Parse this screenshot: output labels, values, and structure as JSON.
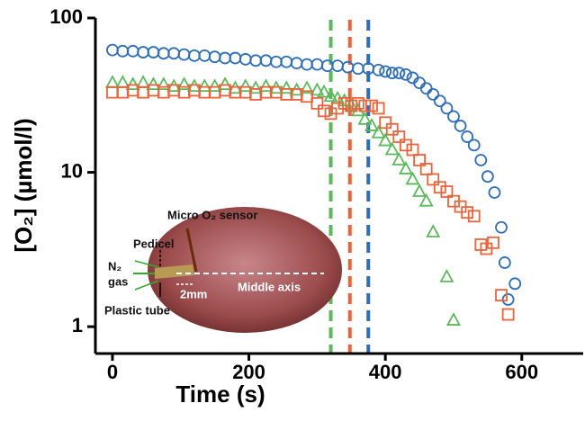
{
  "chart_data": {
    "type": "scatter",
    "x_label": "Time (s)",
    "y_label": "[O₂] (µmol/l)",
    "xlim": [
      -25,
      690
    ],
    "ylim": [
      0.67,
      100
    ],
    "log_y": true,
    "xticks": [
      0,
      200,
      400,
      600
    ],
    "yticks": [
      1,
      10,
      100
    ],
    "vlines": [
      {
        "x": 320,
        "color": "#5cb85c"
      },
      {
        "x": 348,
        "color": "#e8643c"
      },
      {
        "x": 375,
        "color": "#2f6db5"
      }
    ],
    "series": [
      {
        "marker": "circle",
        "color": "#2f6db5",
        "x": [
          0,
          15,
          30,
          45,
          60,
          75,
          90,
          105,
          120,
          135,
          150,
          165,
          180,
          195,
          210,
          225,
          240,
          255,
          270,
          285,
          300,
          315,
          330,
          345,
          360,
          375,
          390,
          400,
          410,
          420,
          430,
          440,
          450,
          460,
          470,
          480,
          490,
          500,
          510,
          520,
          530,
          540,
          550,
          560,
          570,
          575,
          580,
          590
        ],
        "values": [
          62,
          61,
          61,
          60,
          60,
          59,
          59,
          58,
          57,
          57,
          56,
          55,
          55,
          54,
          53,
          53,
          52,
          52,
          51,
          50,
          50,
          49,
          49,
          48,
          47,
          47,
          46,
          45,
          44,
          44,
          43,
          41,
          38,
          35,
          32,
          29,
          26,
          23,
          20,
          17,
          15,
          12,
          9.4,
          7.4,
          4.4,
          2.6,
          1.5,
          1.9
        ]
      },
      {
        "marker": "triangle",
        "color": "#5cb85c",
        "x": [
          0,
          15,
          30,
          45,
          60,
          75,
          90,
          105,
          120,
          135,
          150,
          165,
          180,
          195,
          210,
          225,
          240,
          255,
          270,
          285,
          300,
          310,
          320,
          330,
          340,
          350,
          360,
          370,
          380,
          390,
          400,
          410,
          420,
          430,
          440,
          450,
          460,
          470,
          490,
          500
        ],
        "values": [
          38,
          38,
          37,
          38,
          37,
          37,
          36,
          37,
          36,
          36,
          36,
          37,
          35,
          36,
          35,
          36,
          35,
          35,
          34,
          35,
          34,
          33,
          31,
          30,
          29,
          27,
          25,
          22,
          20,
          18,
          16,
          14,
          12,
          10.5,
          9,
          7.5,
          6.5,
          4.1,
          2.1,
          1.1
        ]
      },
      {
        "marker": "square",
        "color": "#e8643c",
        "x": [
          0,
          15,
          30,
          45,
          60,
          75,
          90,
          105,
          120,
          135,
          150,
          165,
          180,
          195,
          210,
          225,
          240,
          255,
          270,
          285,
          300,
          310,
          320,
          330,
          340,
          350,
          360,
          370,
          380,
          390,
          400,
          410,
          420,
          430,
          440,
          450,
          460,
          470,
          480,
          490,
          500,
          510,
          520,
          530,
          540,
          548,
          558,
          570,
          580
        ],
        "values": [
          33,
          33,
          34,
          33,
          34,
          33,
          34,
          33,
          34,
          33,
          33,
          34,
          33,
          33,
          32,
          33,
          33,
          32,
          32,
          31,
          28,
          25,
          24,
          26,
          28,
          27,
          28,
          27,
          27,
          26,
          21,
          19,
          17,
          15,
          14,
          12,
          10.5,
          9,
          8,
          7.5,
          6.5,
          6,
          5.5,
          5.2,
          3.4,
          3.2,
          3.5,
          1.6,
          1.2
        ]
      }
    ],
    "annotations": {
      "sensor": "Micro O₂ sensor",
      "pedicel": "Pedicel",
      "gas": "N₂",
      "gas2": "gas",
      "mm": "2mm",
      "axis": "Middle axis",
      "tube": "Plastic tube"
    }
  }
}
